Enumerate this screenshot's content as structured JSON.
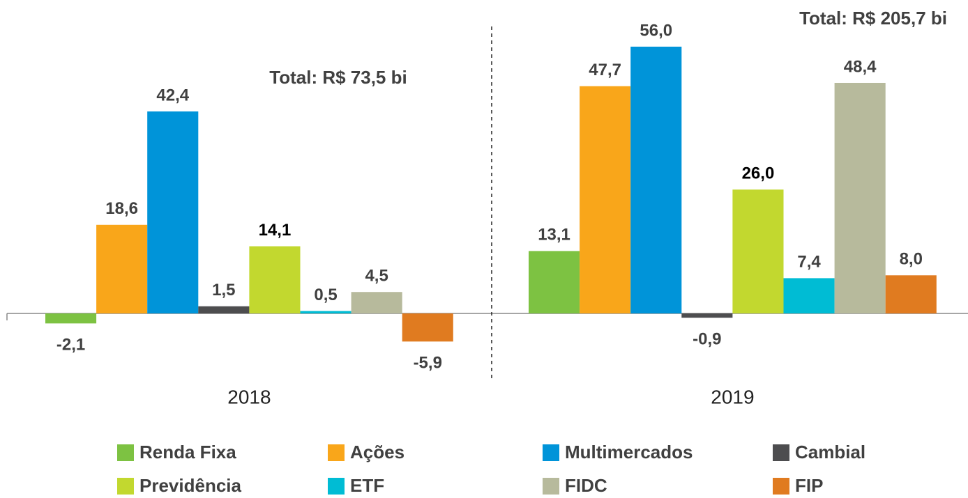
{
  "chart_data": {
    "type": "bar",
    "categories": [
      "2018",
      "2019"
    ],
    "annotations": [
      "Total: R$ 73,5 bi",
      "Total: R$ 205,7 bi"
    ],
    "series": [
      {
        "name": "Renda Fixa",
        "color": "#7dc242",
        "values": [
          -2.1,
          13.1
        ],
        "value_labels": [
          "-2,1",
          "13,1"
        ]
      },
      {
        "name": "Ações",
        "color": "#f9a61a",
        "values": [
          18.6,
          47.7
        ],
        "value_labels": [
          "18,6",
          "47,7"
        ]
      },
      {
        "name": "Multimercados",
        "color": "#0094d9",
        "values": [
          42.4,
          56.0
        ],
        "value_labels": [
          "42,4",
          "56,0"
        ]
      },
      {
        "name": "Cambial",
        "color": "#4d4d4f",
        "values": [
          1.5,
          -0.9
        ],
        "value_labels": [
          "1,5",
          "-0,9"
        ]
      },
      {
        "name": "Previdência",
        "color": "#c2d82f",
        "values": [
          14.1,
          26.0
        ],
        "value_labels": [
          "14,1",
          "26,0"
        ]
      },
      {
        "name": "ETF",
        "color": "#00bcd4",
        "values": [
          0.5,
          7.4
        ],
        "value_labels": [
          "0,5",
          "7,4"
        ]
      },
      {
        "name": "FIDC",
        "color": "#b7ba9c",
        "values": [
          4.5,
          48.4
        ],
        "value_labels": [
          "4,5",
          "48,4"
        ]
      },
      {
        "name": "FIP",
        "color": "#e07b20",
        "values": [
          -5.9,
          8.0
        ],
        "value_labels": [
          "-5,9",
          "8,0"
        ]
      }
    ]
  }
}
